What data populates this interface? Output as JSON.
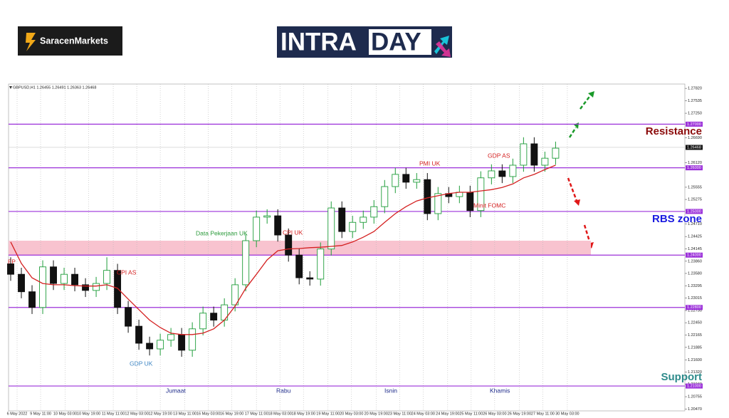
{
  "header": {
    "brand": "SaracenMarkets",
    "banner_left": "INTRA",
    "banner_right": "DAY"
  },
  "chart_data": {
    "type": "candlestick",
    "symbol_info": "GBPUSD,H1  1.26455 1.26491 1.26363 1.26468",
    "categories": [
      null,
      null,
      null,
      null,
      null,
      null,
      null,
      null,
      null,
      null,
      null,
      null,
      null,
      null,
      null,
      null,
      null,
      null,
      null,
      null,
      null,
      null,
      null,
      null,
      null,
      null,
      null,
      null,
      null,
      null,
      null,
      null,
      null,
      null,
      null,
      null,
      null,
      null,
      null,
      null,
      null,
      null,
      null,
      null,
      null,
      null,
      null,
      null,
      null,
      null,
      null,
      null
    ],
    "open": [
      1.238,
      1.2356,
      1.2316,
      1.228,
      1.2373,
      1.2335,
      1.2356,
      1.2332,
      1.2319,
      1.2335,
      1.2365,
      1.228,
      1.2237,
      1.2198,
      1.2185,
      1.2205,
      1.2218,
      1.2182,
      1.2231,
      1.2267,
      1.2251,
      1.2286,
      1.2332,
      1.2433,
      1.2487,
      1.249,
      1.2446,
      1.24,
      1.2348,
      1.2345,
      1.2414,
      1.2508,
      1.2454,
      1.2475,
      1.2487,
      1.2511,
      1.2557,
      1.2585,
      1.2567,
      1.2573,
      1.2495,
      1.2541,
      1.2534,
      1.2544,
      1.2502,
      1.2577,
      1.2593,
      1.258,
      1.2606,
      1.2655,
      1.2606,
      1.2622
    ],
    "high": [
      1.2395,
      1.2371,
      1.2331,
      1.2388,
      1.2388,
      1.2371,
      1.2371,
      1.2347,
      1.235,
      1.2395,
      1.238,
      1.2295,
      1.2252,
      1.2213,
      1.222,
      1.2233,
      1.2233,
      1.2246,
      1.2282,
      1.2282,
      1.2301,
      1.2347,
      1.2448,
      1.2502,
      1.2505,
      1.2505,
      1.2461,
      1.2415,
      1.2363,
      1.2429,
      1.2523,
      1.2523,
      1.249,
      1.2502,
      1.2526,
      1.2572,
      1.26,
      1.26,
      1.2588,
      1.2588,
      1.2556,
      1.2556,
      1.2559,
      1.2559,
      1.2592,
      1.2608,
      1.2608,
      1.2621,
      1.267,
      1.267,
      1.2637,
      1.266
    ],
    "low": [
      1.2341,
      1.2301,
      1.2265,
      1.2265,
      1.232,
      1.232,
      1.2317,
      1.2304,
      1.2304,
      1.232,
      1.2265,
      1.2222,
      1.2183,
      1.217,
      1.217,
      1.219,
      1.2167,
      1.2167,
      1.2216,
      1.2236,
      1.2236,
      1.2271,
      1.2317,
      1.2418,
      1.2472,
      1.2431,
      1.2385,
      1.2333,
      1.233,
      1.233,
      1.2399,
      1.2439,
      1.2439,
      1.246,
      1.2472,
      1.2496,
      1.2542,
      1.2552,
      1.2552,
      1.248,
      1.248,
      1.2519,
      1.2519,
      1.2487,
      1.2487,
      1.2562,
      1.2565,
      1.2565,
      1.2591,
      1.2591,
      1.2591,
      1.2607
    ],
    "close": [
      1.2356,
      1.2316,
      1.228,
      1.2373,
      1.2335,
      1.2356,
      1.2332,
      1.2319,
      1.2335,
      1.2365,
      1.228,
      1.2237,
      1.2198,
      1.2185,
      1.2205,
      1.2218,
      1.2182,
      1.2231,
      1.2267,
      1.2251,
      1.2286,
      1.2332,
      1.2433,
      1.2487,
      1.249,
      1.2446,
      1.24,
      1.2348,
      1.2345,
      1.2414,
      1.2508,
      1.2454,
      1.2475,
      1.2487,
      1.2511,
      1.2557,
      1.2585,
      1.2567,
      1.2573,
      1.2495,
      1.2541,
      1.2534,
      1.2544,
      1.2502,
      1.2577,
      1.2593,
      1.258,
      1.2606,
      1.2655,
      1.2606,
      1.2622,
      1.2645
    ],
    "up_color": "#1f9d3a",
    "down_color": "#111111",
    "moving_average": {
      "color": "#d42020",
      "values": [
        1.243,
        1.2381,
        1.2348,
        1.2335,
        1.2332,
        1.2332,
        1.233,
        1.2329,
        1.2329,
        1.2332,
        1.2324,
        1.2299,
        1.2275,
        1.2251,
        1.2234,
        1.2221,
        1.2218,
        1.2218,
        1.2221,
        1.2231,
        1.2251,
        1.2283,
        1.2324,
        1.2356,
        1.2389,
        1.241,
        1.2414,
        1.2415,
        1.2417,
        1.2418,
        1.242,
        1.2422,
        1.243,
        1.2441,
        1.2454,
        1.2475,
        1.2495,
        1.2511,
        1.2524,
        1.2531,
        1.2536,
        1.2541,
        1.2544,
        1.2544,
        1.2547,
        1.255,
        1.2555,
        1.2563,
        1.2577,
        1.2585,
        1.2596,
        1.2606
      ]
    },
    "xlim": [
      -0.2,
      63.1
    ],
    "xticks": [
      {
        "value": 0.6,
        "label": "6 May 2022"
      },
      {
        "value": 2.8,
        "label": "9 May 11:00"
      },
      {
        "value": 5.1,
        "label": "10 May 03:00"
      },
      {
        "value": 7.3,
        "label": "10 May 19:00"
      },
      {
        "value": 9.6,
        "label": "11 May 11:00"
      },
      {
        "value": 11.8,
        "label": "12 May 03:00"
      },
      {
        "value": 14.0,
        "label": "12 May 19:00"
      },
      {
        "value": 16.3,
        "label": "13 May 11:00"
      },
      {
        "value": 18.5,
        "label": "16 May 03:00"
      },
      {
        "value": 20.7,
        "label": "16 May 19:00"
      },
      {
        "value": 23.0,
        "label": "17 May 11:00"
      },
      {
        "value": 25.2,
        "label": "18 May 03:00"
      },
      {
        "value": 27.4,
        "label": "18 May 19:00"
      },
      {
        "value": 29.7,
        "label": "19 May 11:00"
      },
      {
        "value": 31.9,
        "label": "20 May 03:00"
      },
      {
        "value": 34.2,
        "label": "20 May 19:00"
      },
      {
        "value": 36.4,
        "label": "23 May 11:00"
      },
      {
        "value": 38.6,
        "label": "24 May 03:00"
      },
      {
        "value": 40.9,
        "label": "24 May 19:00"
      },
      {
        "value": 43.1,
        "label": "25 May 11:00"
      },
      {
        "value": 45.3,
        "label": "26 May 03:00"
      },
      {
        "value": 47.6,
        "label": "26 May 19:00"
      },
      {
        "value": 49.8,
        "label": "27 May 11:00"
      },
      {
        "value": 52.1,
        "label": "30 May 03:00"
      }
    ],
    "ylim": [
      1.2043,
      1.2792
    ],
    "yticks": [
      {
        "value": 1.2782,
        "label": "1.27820"
      },
      1.27535,
      {
        "value": 1.2725,
        "label": "1.27250"
      },
      {
        "value": 1.2669,
        "label": "1.26690"
      },
      {
        "value": 1.2612,
        "label": "1.26120"
      },
      1.25555,
      1.25275,
      {
        "value": 1.2471,
        "label": "1.24710"
      },
      1.24425,
      1.24145,
      {
        "value": 1.2386,
        "label": "1.23860"
      },
      {
        "value": 1.2358,
        "label": "1.23580"
      },
      1.23295,
      1.23015,
      {
        "value": 1.2273,
        "label": "1.22730"
      },
      {
        "value": 1.2245,
        "label": "1.22450"
      },
      1.22165,
      1.21885,
      {
        "value": 1.216,
        "label": "1.21600"
      },
      {
        "value": 1.2132,
        "label": "1.21320"
      },
      {
        "value": 1.2104,
        "label": "1.21040"
      },
      1.20755,
      {
        "value": 1.2047,
        "label": "1.20470"
      }
    ],
    "levels": [
      {
        "value": 1.27,
        "label": "1.27000"
      },
      {
        "value": 1.26,
        "label": "1.26000"
      },
      {
        "value": 1.25,
        "label": "1.25000"
      },
      {
        "value": 1.24,
        "label": "1.24000"
      },
      {
        "value": 1.228,
        "label": "1.22800"
      },
      {
        "value": 1.21,
        "label": "1.21000"
      }
    ],
    "level_color": "#9b30d9",
    "current_price": 1.26468,
    "zone": [
      1.24,
      1.2433
    ],
    "zone_color": "#f8c3cf",
    "grid": true,
    "events": [
      "FP",
      "CPI AS",
      "GDP UK",
      "Data Pekerjaan UK",
      "CPI UK",
      "PMI UK",
      "GDP AS",
      "Minit FOMC"
    ],
    "days": [
      "Jumaat",
      "Rabu",
      "Isnin",
      "Khamis"
    ],
    "zone_labels": [
      "Resistance",
      "RBS zone",
      "Support"
    ]
  }
}
